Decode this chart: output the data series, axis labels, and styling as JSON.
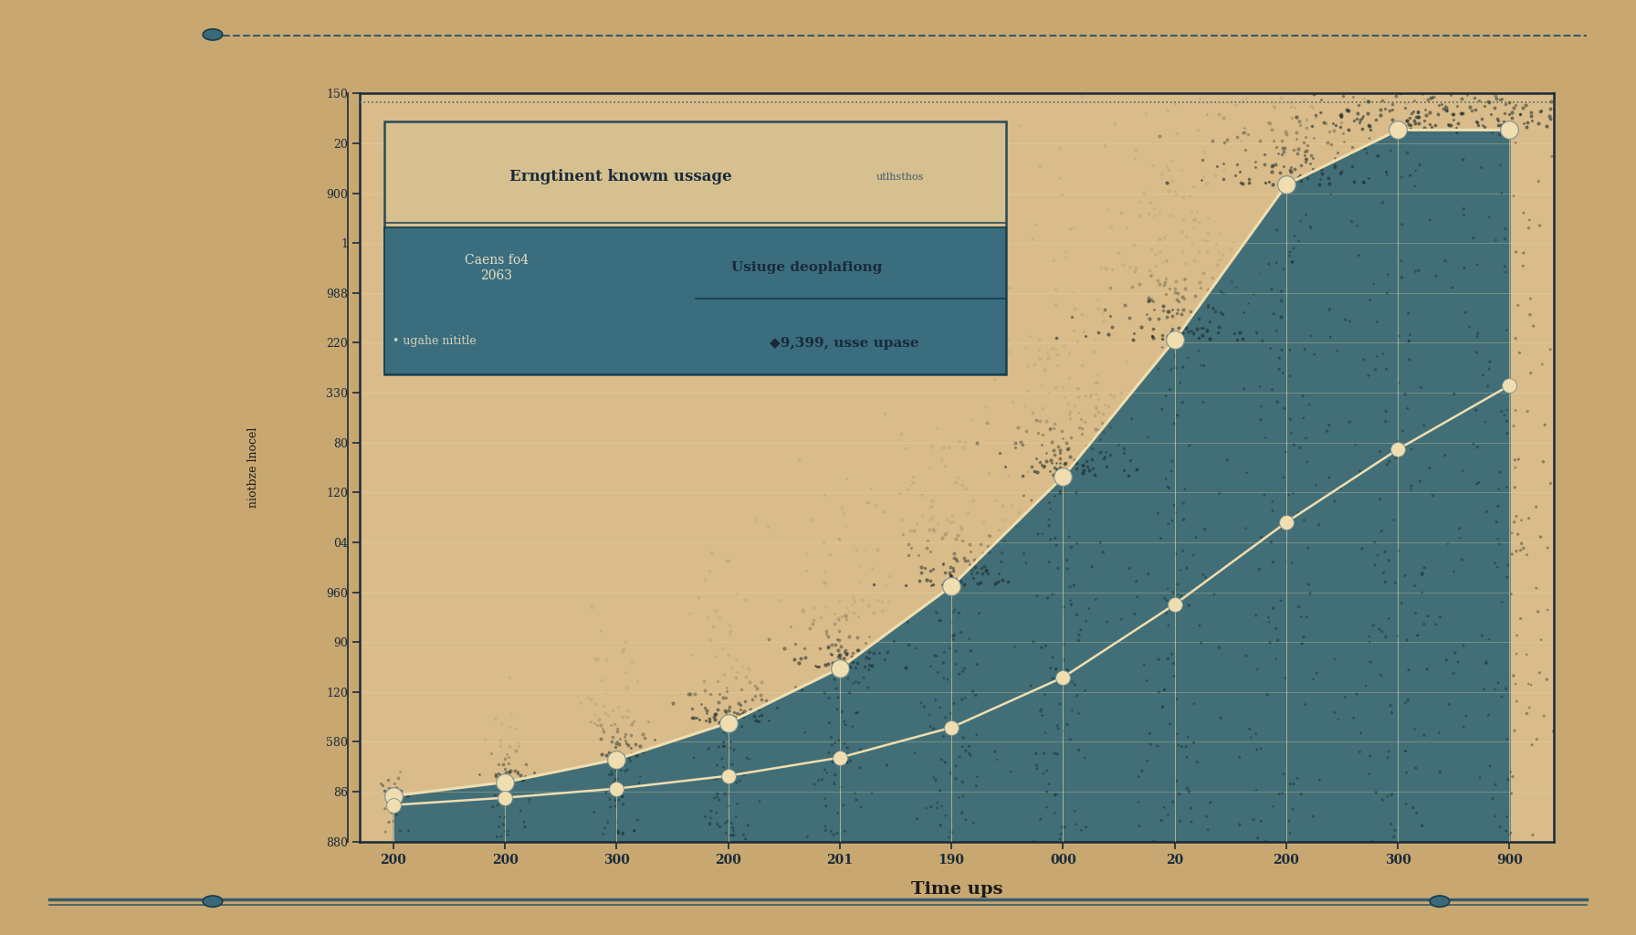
{
  "title": "",
  "xlabel": "Time ups",
  "ylabel": "niotbze lnocel",
  "x_labels": [
    "200",
    "200",
    "300",
    "200",
    "201",
    "190",
    "000",
    "20",
    "200",
    "300",
    "900"
  ],
  "x_values": [
    0,
    1,
    2,
    3,
    4,
    5,
    6,
    7,
    8,
    9,
    10
  ],
  "line1_y": [
    150,
    165,
    190,
    230,
    290,
    380,
    500,
    650,
    820,
    880,
    880
  ],
  "line2_y": [
    140,
    148,
    158,
    172,
    192,
    225,
    280,
    360,
    450,
    530,
    600
  ],
  "ytick_labels": [
    "880",
    "86",
    "580",
    "120",
    "90",
    "960",
    "04",
    "120",
    "80",
    "330",
    "220",
    "988",
    "1",
    "900",
    "20",
    "150"
  ],
  "ylim": [
    100,
    920
  ],
  "bg_color": "#c8a870",
  "paper_color": "#d9bc8a",
  "chart_fill_color": "#2d6575",
  "line_color": "#f0deb0",
  "marker_color": "#f0deb0",
  "legend_title": "Erngtinent knowm ussage",
  "legend_title2": "utlhsthos",
  "legend_stat": "9,399,",
  "legend_subtitle": "Usiuge deoplafiong",
  "legend_left_title": "Caens fo4\n2063",
  "legend_left_sub": "ugahe nititle",
  "legend_right_sub": "usse upase",
  "legend_bg_outer": "#d4bc8c",
  "legend_bg_inner": "#3a6e7e",
  "dotted_line_color": "#3a6070"
}
